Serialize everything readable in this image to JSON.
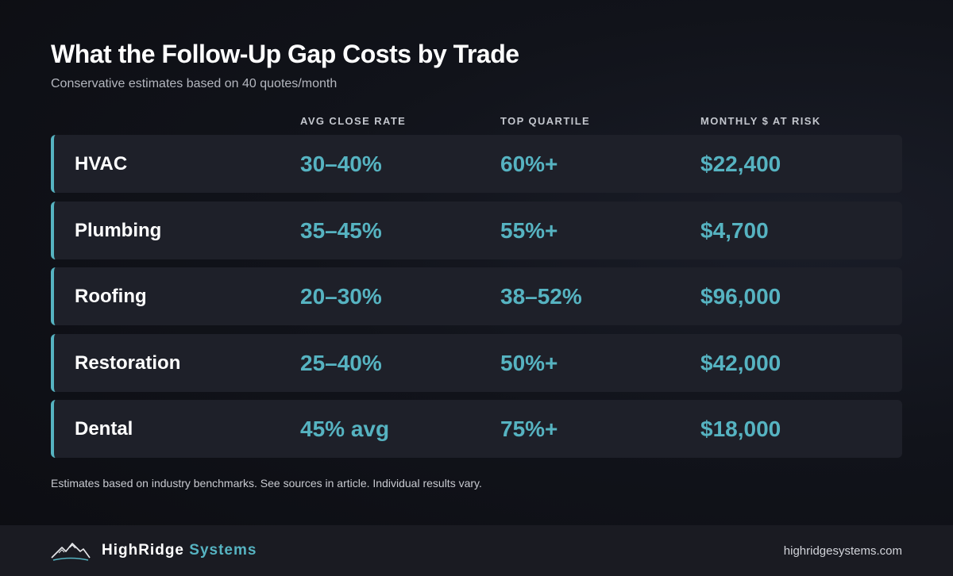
{
  "chart_data": {
    "type": "table",
    "title": "What the Follow-Up Gap Costs by Trade",
    "subtitle": "Conservative estimates based on 40 quotes/month",
    "columns": [
      "",
      "AVG CLOSE RATE",
      "TOP QUARTILE",
      "MONTHLY $ AT RISK"
    ],
    "rows": [
      {
        "trade": "HVAC",
        "avg_close_rate": "30–40%",
        "top_quartile": "60%+",
        "monthly_at_risk": "$22,400"
      },
      {
        "trade": "Plumbing",
        "avg_close_rate": "35–45%",
        "top_quartile": "55%+",
        "monthly_at_risk": "$4,700"
      },
      {
        "trade": "Roofing",
        "avg_close_rate": "20–30%",
        "top_quartile": "38–52%",
        "monthly_at_risk": "$96,000"
      },
      {
        "trade": "Restoration",
        "avg_close_rate": "25–40%",
        "top_quartile": "50%+",
        "monthly_at_risk": "$42,000"
      },
      {
        "trade": "Dental",
        "avg_close_rate": "45% avg",
        "top_quartile": "75%+",
        "monthly_at_risk": "$18,000"
      }
    ],
    "footnote": "Estimates based on industry benchmarks. See sources in article. Individual results vary."
  },
  "footer": {
    "brand_primary": "HighRidge",
    "brand_secondary": "Systems",
    "url": "highridgesystems.com",
    "logo_icon": "mountain-icon"
  },
  "colors": {
    "accent": "#56b3c1",
    "row_background": "#1e2029",
    "page_background": "#0f1116"
  }
}
